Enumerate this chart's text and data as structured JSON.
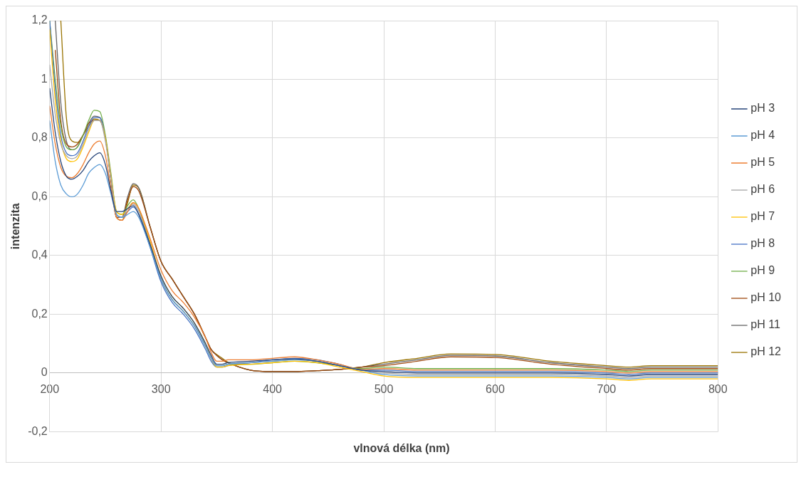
{
  "chart_data": {
    "type": "line",
    "xlabel": "vlnová délka (nm)",
    "ylabel": "intenzita",
    "x": [
      200,
      205,
      210,
      215,
      220,
      225,
      230,
      235,
      240,
      245,
      250,
      255,
      260,
      265,
      270,
      275,
      280,
      290,
      300,
      310,
      320,
      330,
      340,
      345,
      350,
      355,
      360,
      380,
      400,
      420,
      440,
      460,
      480,
      500,
      530,
      560,
      600,
      650,
      700,
      720,
      740,
      800
    ],
    "xlim": [
      200,
      800
    ],
    "xticks": [
      200,
      300,
      400,
      500,
      600,
      700,
      800
    ],
    "ylim": [
      -0.2,
      1.2
    ],
    "yticks": [
      {
        "value": -0.2,
        "label": "-0,2"
      },
      0,
      {
        "value": 0.2,
        "label": "0,2"
      },
      {
        "value": 0.4,
        "label": "0,4"
      },
      {
        "value": 0.6,
        "label": "0,6"
      },
      {
        "value": 0.8,
        "label": "0,8"
      },
      1,
      {
        "value": 1.2,
        "label": "1,2"
      }
    ],
    "grid": true,
    "legend": "right",
    "marker": "none",
    "line_style": "solid",
    "series": [
      {
        "name": "pH 3",
        "color": "#264478",
        "values": [
          0.97,
          0.82,
          0.72,
          0.67,
          0.66,
          0.67,
          0.69,
          0.72,
          0.74,
          0.75,
          0.71,
          0.62,
          0.55,
          0.55,
          0.56,
          0.57,
          0.54,
          0.44,
          0.33,
          0.26,
          0.22,
          0.17,
          0.1,
          0.06,
          0.03,
          0.03,
          0.035,
          0.04,
          0.045,
          0.048,
          0.04,
          0.025,
          0.01,
          0.005,
          0,
          0,
          0,
          0,
          -0.005,
          -0.01,
          -0.005,
          -0.005
        ]
      },
      {
        "name": "pH 4",
        "color": "#5b9bd5",
        "values": [
          0.86,
          0.72,
          0.64,
          0.61,
          0.6,
          0.61,
          0.64,
          0.68,
          0.7,
          0.71,
          0.68,
          0.61,
          0.54,
          0.53,
          0.54,
          0.55,
          0.53,
          0.43,
          0.32,
          0.25,
          0.21,
          0.16,
          0.09,
          0.05,
          0.025,
          0.025,
          0.03,
          0.035,
          0.04,
          0.045,
          0.04,
          0.025,
          0.01,
          -0.005,
          -0.01,
          -0.01,
          -0.01,
          -0.01,
          -0.015,
          -0.02,
          -0.015,
          -0.015
        ]
      },
      {
        "name": "pH 5",
        "color": "#ed7d31",
        "values": [
          0.91,
          0.78,
          0.7,
          0.67,
          0.665,
          0.68,
          0.71,
          0.75,
          0.78,
          0.79,
          0.74,
          0.63,
          0.53,
          0.52,
          0.55,
          0.58,
          0.56,
          0.46,
          0.35,
          0.28,
          0.24,
          0.19,
          0.12,
          0.07,
          0.04,
          0.04,
          0.045,
          0.045,
          0.05,
          0.055,
          0.045,
          0.03,
          0.012,
          0.015,
          0.01,
          0.01,
          0.01,
          0.01,
          0.005,
          0,
          0.005,
          0.005
        ]
      },
      {
        "name": "pH 6",
        "color": "#a5a5a5",
        "values": [
          1.05,
          0.88,
          0.78,
          0.74,
          0.73,
          0.74,
          0.78,
          0.83,
          0.86,
          0.86,
          0.79,
          0.66,
          0.54,
          0.53,
          0.56,
          0.575,
          0.55,
          0.44,
          0.32,
          0.25,
          0.21,
          0.16,
          0.09,
          0.05,
          0.025,
          0.025,
          0.03,
          0.035,
          0.04,
          0.045,
          0.04,
          0.025,
          0.01,
          0,
          -0.005,
          -0.005,
          -0.005,
          -0.005,
          -0.01,
          -0.015,
          -0.01,
          -0.01
        ]
      },
      {
        "name": "pH 7",
        "color": "#ffc000",
        "values": [
          1.17,
          0.93,
          0.79,
          0.73,
          0.72,
          0.73,
          0.77,
          0.82,
          0.86,
          0.86,
          0.8,
          0.67,
          0.55,
          0.54,
          0.56,
          0.58,
          0.56,
          0.45,
          0.33,
          0.26,
          0.22,
          0.17,
          0.1,
          0.05,
          0.02,
          0.02,
          0.025,
          0.03,
          0.035,
          0.04,
          0.035,
          0.02,
          0.005,
          -0.01,
          -0.015,
          -0.015,
          -0.015,
          -0.015,
          -0.02,
          -0.025,
          -0.02,
          -0.02
        ]
      },
      {
        "name": "pH 8",
        "color": "#4472c4",
        "values": [
          1.2,
          0.97,
          0.81,
          0.75,
          0.74,
          0.75,
          0.79,
          0.84,
          0.87,
          0.87,
          0.8,
          0.67,
          0.54,
          0.53,
          0.55,
          0.565,
          0.54,
          0.43,
          0.31,
          0.24,
          0.2,
          0.15,
          0.08,
          0.04,
          0.02,
          0.02,
          0.025,
          0.035,
          0.045,
          0.05,
          0.045,
          0.03,
          0.01,
          0.01,
          0.005,
          0.005,
          0.005,
          0.005,
          0,
          -0.005,
          0,
          0
        ]
      },
      {
        "name": "pH 9",
        "color": "#70ad47",
        "values": [
          1.2,
          1.0,
          0.84,
          0.77,
          0.76,
          0.77,
          0.81,
          0.86,
          0.895,
          0.89,
          0.81,
          0.68,
          0.55,
          0.54,
          0.57,
          0.59,
          0.56,
          0.44,
          0.32,
          0.25,
          0.21,
          0.16,
          0.09,
          0.05,
          0.025,
          0.025,
          0.03,
          0.03,
          0.035,
          0.04,
          0.035,
          0.025,
          0.015,
          0.02,
          0.015,
          0.015,
          0.015,
          0.015,
          0.01,
          0.005,
          0.01,
          0.01
        ]
      },
      {
        "name": "pH 10",
        "color": "#9e480e",
        "values": [
          null,
          1.1,
          0.86,
          0.78,
          0.77,
          0.78,
          0.81,
          0.85,
          0.86,
          0.86,
          0.8,
          0.66,
          0.53,
          0.53,
          0.59,
          0.635,
          0.62,
          0.5,
          0.38,
          0.32,
          0.26,
          0.2,
          0.12,
          0.08,
          0.06,
          0.045,
          0.035,
          0.01,
          0.005,
          0.005,
          0.008,
          0.012,
          0.02,
          0.025,
          0.04,
          0.055,
          0.053,
          0.03,
          0.015,
          0.01,
          0.015,
          0.015
        ]
      },
      {
        "name": "pH 11",
        "color": "#636363",
        "values": [
          null,
          1.2,
          0.92,
          0.79,
          0.76,
          0.77,
          0.81,
          0.85,
          0.875,
          0.87,
          0.8,
          0.66,
          0.53,
          0.53,
          0.6,
          0.645,
          0.63,
          0.5,
          0.38,
          0.32,
          0.26,
          0.2,
          0.12,
          0.08,
          0.06,
          0.045,
          0.035,
          0.01,
          0.005,
          0.005,
          0.008,
          0.012,
          0.02,
          0.03,
          0.045,
          0.06,
          0.058,
          0.035,
          0.02,
          0.015,
          0.02,
          0.02
        ]
      },
      {
        "name": "pH 12",
        "color": "#997300",
        "values": [
          null,
          null,
          1.2,
          0.87,
          0.79,
          0.785,
          0.81,
          0.84,
          0.865,
          0.86,
          0.8,
          0.66,
          0.53,
          0.52,
          0.58,
          0.64,
          0.63,
          0.5,
          0.38,
          0.32,
          0.26,
          0.2,
          0.12,
          0.08,
          0.063,
          0.05,
          0.037,
          0.01,
          0.005,
          0.005,
          0.008,
          0.012,
          0.02,
          0.035,
          0.05,
          0.065,
          0.063,
          0.04,
          0.025,
          0.02,
          0.025,
          0.025
        ]
      }
    ]
  }
}
